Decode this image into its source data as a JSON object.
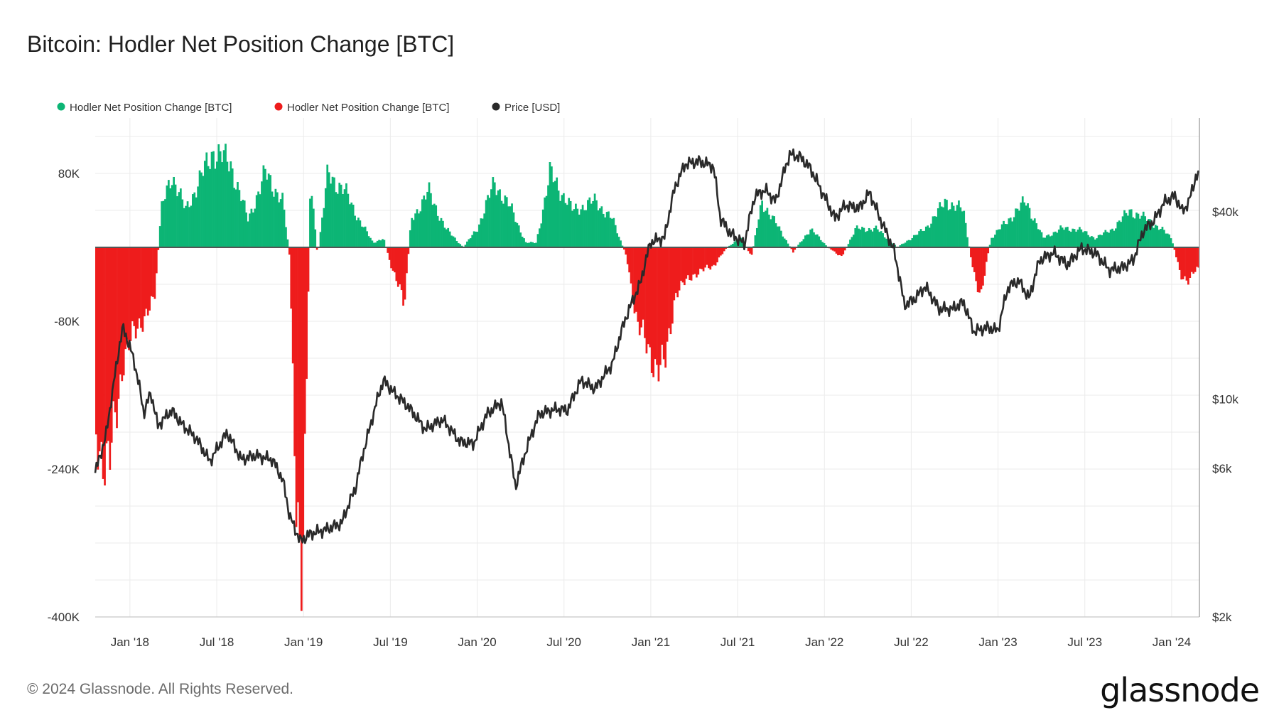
{
  "title": "Bitcoin: Hodler Net Position Change [BTC]",
  "footer": "© 2024 Glassnode. All Rights Reserved.",
  "logo": "glassnode",
  "chart_data": {
    "type": "bar",
    "title": "Bitcoin: Hodler Net Position Change [BTC]",
    "legend_position": "top-left",
    "grid": true,
    "colors": {
      "positive": "#0cb575",
      "negative": "#ee1c1c",
      "price": "#2a2a2a",
      "grid": "#ebebeb",
      "axis": "#d0d0d0"
    },
    "legend": [
      {
        "label": "Hodler Net Position Change [BTC]",
        "color": "#0cb575"
      },
      {
        "label": "Hodler Net Position Change [BTC]",
        "color": "#ee1c1c"
      },
      {
        "label": "Price [USD]",
        "color": "#2a2a2a"
      }
    ],
    "y_left": {
      "ticks": [
        80000,
        -80000,
        -240000,
        -400000
      ],
      "labels": [
        "80K",
        "-80K",
        "-240K",
        "-400K"
      ],
      "ylim": [
        -400000,
        140000
      ]
    },
    "y_right": {
      "scale": "log",
      "ticks": [
        40000,
        10000,
        6000,
        2000
      ],
      "labels": [
        "$40k",
        "$10k",
        "$6k",
        "$2k"
      ],
      "ylim": [
        2000,
        80000
      ]
    },
    "x_axis": {
      "start": "2017-11",
      "end": "2024-03",
      "ticks": [
        {
          "t": 2018.0,
          "label": "Jan '18"
        },
        {
          "t": 2018.5,
          "label": "Jul '18"
        },
        {
          "t": 2019.0,
          "label": "Jan '19"
        },
        {
          "t": 2019.5,
          "label": "Jul '19"
        },
        {
          "t": 2020.0,
          "label": "Jan '20"
        },
        {
          "t": 2020.5,
          "label": "Jul '20"
        },
        {
          "t": 2021.0,
          "label": "Jan '21"
        },
        {
          "t": 2021.5,
          "label": "Jul '21"
        },
        {
          "t": 2022.0,
          "label": "Jan '22"
        },
        {
          "t": 2022.5,
          "label": "Jul '22"
        },
        {
          "t": 2023.0,
          "label": "Jan '23"
        },
        {
          "t": 2023.5,
          "label": "Jul '23"
        },
        {
          "t": 2024.0,
          "label": "Jan '24"
        }
      ]
    },
    "series": [
      {
        "name": "Hodler Net Position Change [BTC]",
        "axis": "left",
        "points": [
          [
            2017.8,
            -200000
          ],
          [
            2017.88,
            -240000
          ],
          [
            2017.96,
            -120000
          ],
          [
            2018.06,
            -80000
          ],
          [
            2018.14,
            -60000
          ],
          [
            2018.18,
            40000
          ],
          [
            2018.24,
            80000
          ],
          [
            2018.32,
            40000
          ],
          [
            2018.42,
            80000
          ],
          [
            2018.48,
            105000
          ],
          [
            2018.58,
            90000
          ],
          [
            2018.68,
            30000
          ],
          [
            2018.78,
            80000
          ],
          [
            2018.88,
            50000
          ],
          [
            2018.92,
            -10000
          ],
          [
            2018.96,
            -320000
          ],
          [
            2018.99,
            -350000
          ],
          [
            2019.02,
            -110000
          ],
          [
            2019.04,
            80000
          ],
          [
            2019.08,
            -10000
          ],
          [
            2019.14,
            80000
          ],
          [
            2019.24,
            60000
          ],
          [
            2019.32,
            30000
          ],
          [
            2019.4,
            5000
          ],
          [
            2019.46,
            10000
          ],
          [
            2019.52,
            -30000
          ],
          [
            2019.58,
            -60000
          ],
          [
            2019.62,
            30000
          ],
          [
            2019.72,
            60000
          ],
          [
            2019.82,
            20000
          ],
          [
            2019.92,
            0
          ],
          [
            2020.0,
            20000
          ],
          [
            2020.1,
            70000
          ],
          [
            2020.2,
            40000
          ],
          [
            2020.28,
            5000
          ],
          [
            2020.34,
            5000
          ],
          [
            2020.42,
            80000
          ],
          [
            2020.55,
            40000
          ],
          [
            2020.68,
            50000
          ],
          [
            2020.78,
            30000
          ],
          [
            2020.86,
            -10000
          ],
          [
            2020.92,
            -80000
          ],
          [
            2020.98,
            -110000
          ],
          [
            2021.04,
            -130000
          ],
          [
            2021.08,
            -130000
          ],
          [
            2021.14,
            -50000
          ],
          [
            2021.24,
            -30000
          ],
          [
            2021.36,
            -20000
          ],
          [
            2021.44,
            0
          ],
          [
            2021.52,
            10000
          ],
          [
            2021.58,
            -10000
          ],
          [
            2021.64,
            50000
          ],
          [
            2021.74,
            20000
          ],
          [
            2021.82,
            -5000
          ],
          [
            2021.92,
            20000
          ],
          [
            2022.02,
            0
          ],
          [
            2022.1,
            -10000
          ],
          [
            2022.18,
            20000
          ],
          [
            2022.3,
            20000
          ],
          [
            2022.42,
            0
          ],
          [
            2022.5,
            10000
          ],
          [
            2022.58,
            20000
          ],
          [
            2022.7,
            50000
          ],
          [
            2022.8,
            40000
          ],
          [
            2022.86,
            -30000
          ],
          [
            2022.9,
            -50000
          ],
          [
            2022.96,
            10000
          ],
          [
            2023.06,
            30000
          ],
          [
            2023.16,
            50000
          ],
          [
            2023.26,
            10000
          ],
          [
            2023.36,
            20000
          ],
          [
            2023.46,
            20000
          ],
          [
            2023.56,
            10000
          ],
          [
            2023.66,
            20000
          ],
          [
            2023.76,
            40000
          ],
          [
            2023.86,
            30000
          ],
          [
            2023.94,
            20000
          ],
          [
            2024.0,
            10000
          ],
          [
            2024.05,
            -30000
          ],
          [
            2024.1,
            -35000
          ],
          [
            2024.14,
            -25000
          ]
        ]
      },
      {
        "name": "Price [USD]",
        "axis": "right",
        "points": [
          [
            2017.8,
            5800
          ],
          [
            2017.86,
            7500
          ],
          [
            2017.9,
            10500
          ],
          [
            2017.96,
            17000
          ],
          [
            2018.02,
            13500
          ],
          [
            2018.08,
            9000
          ],
          [
            2018.12,
            10500
          ],
          [
            2018.16,
            8200
          ],
          [
            2018.24,
            9200
          ],
          [
            2018.3,
            8300
          ],
          [
            2018.38,
            7500
          ],
          [
            2018.46,
            6300
          ],
          [
            2018.56,
            7800
          ],
          [
            2018.64,
            6400
          ],
          [
            2018.72,
            6600
          ],
          [
            2018.82,
            6400
          ],
          [
            2018.88,
            5500
          ],
          [
            2018.92,
            4200
          ],
          [
            2018.98,
            3500
          ],
          [
            2019.04,
            3700
          ],
          [
            2019.12,
            3800
          ],
          [
            2019.22,
            4000
          ],
          [
            2019.3,
            5200
          ],
          [
            2019.38,
            8000
          ],
          [
            2019.46,
            11500
          ],
          [
            2019.52,
            10500
          ],
          [
            2019.6,
            9500
          ],
          [
            2019.7,
            8000
          ],
          [
            2019.8,
            8600
          ],
          [
            2019.9,
            7300
          ],
          [
            2019.98,
            7200
          ],
          [
            2020.06,
            9000
          ],
          [
            2020.14,
            9800
          ],
          [
            2020.18,
            7200
          ],
          [
            2020.22,
            5200
          ],
          [
            2020.28,
            6800
          ],
          [
            2020.36,
            9000
          ],
          [
            2020.46,
            9300
          ],
          [
            2020.52,
            9200
          ],
          [
            2020.6,
            11500
          ],
          [
            2020.68,
            10800
          ],
          [
            2020.78,
            13000
          ],
          [
            2020.86,
            18500
          ],
          [
            2020.94,
            23500
          ],
          [
            2021.0,
            32000
          ],
          [
            2021.08,
            33000
          ],
          [
            2021.14,
            48000
          ],
          [
            2021.2,
            57000
          ],
          [
            2021.28,
            58000
          ],
          [
            2021.36,
            56000
          ],
          [
            2021.4,
            38000
          ],
          [
            2021.46,
            34000
          ],
          [
            2021.54,
            31500
          ],
          [
            2021.6,
            45000
          ],
          [
            2021.66,
            47000
          ],
          [
            2021.72,
            43000
          ],
          [
            2021.8,
            61000
          ],
          [
            2021.86,
            60000
          ],
          [
            2021.92,
            55000
          ],
          [
            2021.98,
            47000
          ],
          [
            2022.06,
            38000
          ],
          [
            2022.12,
            42000
          ],
          [
            2022.2,
            41000
          ],
          [
            2022.26,
            46000
          ],
          [
            2022.32,
            38000
          ],
          [
            2022.4,
            30000
          ],
          [
            2022.46,
            20000
          ],
          [
            2022.52,
            21000
          ],
          [
            2022.58,
            23000
          ],
          [
            2022.66,
            19500
          ],
          [
            2022.74,
            19500
          ],
          [
            2022.8,
            20500
          ],
          [
            2022.86,
            16500
          ],
          [
            2022.94,
            17000
          ],
          [
            2023.0,
            16600
          ],
          [
            2023.06,
            23000
          ],
          [
            2023.12,
            24000
          ],
          [
            2023.18,
            21000
          ],
          [
            2023.24,
            28000
          ],
          [
            2023.32,
            29500
          ],
          [
            2023.4,
            27000
          ],
          [
            2023.48,
            30500
          ],
          [
            2023.56,
            29500
          ],
          [
            2023.64,
            26000
          ],
          [
            2023.72,
            26500
          ],
          [
            2023.78,
            28000
          ],
          [
            2023.84,
            35000
          ],
          [
            2023.9,
            37500
          ],
          [
            2023.96,
            43000
          ],
          [
            2024.02,
            45000
          ],
          [
            2024.06,
            40000
          ],
          [
            2024.1,
            43000
          ],
          [
            2024.14,
            52000
          ]
        ]
      }
    ]
  }
}
